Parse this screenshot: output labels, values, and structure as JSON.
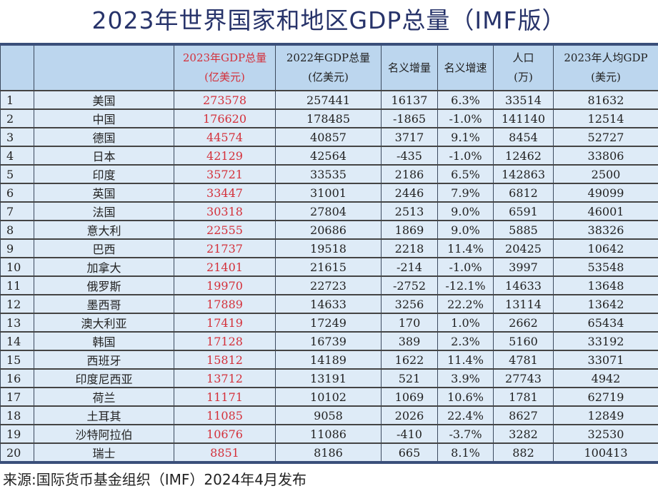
{
  "title": "2023年世界国家和地区GDP总量（IMF版）",
  "headers": [
    "",
    "",
    "2023年GDP总量\n(亿美元)",
    "2022年GDP总量\n(亿美元)",
    "名义增量",
    "名义增速",
    "人口\n(万)",
    "2023年人均GDP\n(美元)"
  ],
  "rows": [
    [
      "1",
      "美国",
      "273578",
      "257441",
      "16137",
      "6.3%",
      "33514",
      "81632"
    ],
    [
      "2",
      "中国",
      "176620",
      "178485",
      "-1865",
      "-1.0%",
      "141140",
      "12514"
    ],
    [
      "3",
      "德国",
      "44574",
      "40857",
      "3717",
      "9.1%",
      "8454",
      "52727"
    ],
    [
      "4",
      "日本",
      "42129",
      "42564",
      "-435",
      "-1.0%",
      "12462",
      "33806"
    ],
    [
      "5",
      "印度",
      "35721",
      "33535",
      "2186",
      "6.5%",
      "142863",
      "2500"
    ],
    [
      "6",
      "英国",
      "33447",
      "31001",
      "2446",
      "7.9%",
      "6812",
      "49099"
    ],
    [
      "7",
      "法国",
      "30318",
      "27804",
      "2513",
      "9.0%",
      "6591",
      "46001"
    ],
    [
      "8",
      "意大利",
      "22555",
      "20686",
      "1869",
      "9.0%",
      "5885",
      "38326"
    ],
    [
      "9",
      "巴西",
      "21737",
      "19518",
      "2218",
      "11.4%",
      "20425",
      "10642"
    ],
    [
      "10",
      "加拿大",
      "21401",
      "21615",
      "-214",
      "-1.0%",
      "3997",
      "53548"
    ],
    [
      "11",
      "俄罗斯",
      "19970",
      "22723",
      "-2752",
      "-12.1%",
      "14633",
      "13648"
    ],
    [
      "12",
      "墨西哥",
      "17889",
      "14633",
      "3256",
      "22.2%",
      "13114",
      "13642"
    ],
    [
      "13",
      "澳大利亚",
      "17419",
      "17249",
      "170",
      "1.0%",
      "2662",
      "65434"
    ],
    [
      "14",
      "韩国",
      "17128",
      "16739",
      "389",
      "2.3%",
      "5160",
      "33192"
    ],
    [
      "15",
      "西班牙",
      "15812",
      "14189",
      "1622",
      "11.4%",
      "4781",
      "33071"
    ],
    [
      "16",
      "印度尼西亚",
      "13712",
      "13191",
      "521",
      "3.9%",
      "27743",
      "4942"
    ],
    [
      "17",
      "荷兰",
      "11171",
      "10102",
      "1069",
      "10.6%",
      "1781",
      "62719"
    ],
    [
      "18",
      "土耳其",
      "11085",
      "9058",
      "2026",
      "22.4%",
      "8627",
      "12849"
    ],
    [
      "19",
      "沙特阿拉伯",
      "10676",
      "11086",
      "-410",
      "-3.7%",
      "3282",
      "32530"
    ],
    [
      "20",
      "瑞士",
      "8851",
      "8186",
      "665",
      "8.1%",
      "882",
      "100413"
    ]
  ],
  "footer": "来源:国际货币基金组织（IMF）2024年4月发布",
  "colors": {
    "title": "#27336a",
    "highlight": "#d4303a",
    "header_bg": "#bcd6ee",
    "row_bg": "#deebf7"
  }
}
